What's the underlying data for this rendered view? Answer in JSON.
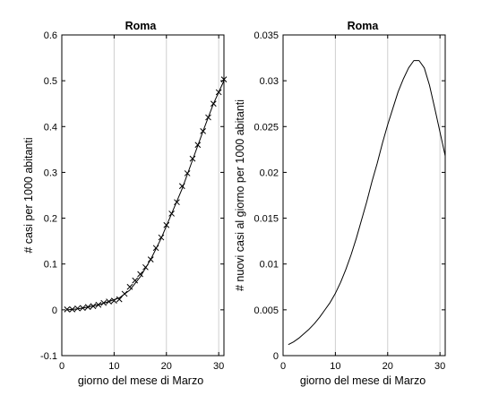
{
  "chart_data": [
    {
      "type": "scatter",
      "title": "Roma",
      "xlabel": "giorno del mese di Marzo",
      "ylabel": "# casi per 1000 abitanti",
      "xlim": [
        0,
        31
      ],
      "ylim": [
        -0.1,
        0.6
      ],
      "xticks": [
        0,
        10,
        20,
        30
      ],
      "yticks": [
        -0.1,
        0,
        0.1,
        0.2,
        0.3,
        0.4,
        0.5,
        0.6
      ],
      "grid": "vertical",
      "series": [
        {
          "kind": "markers",
          "marker": "x",
          "x": [
            1,
            2,
            3,
            4,
            5,
            6,
            7,
            8,
            9,
            10,
            11,
            12,
            13,
            14,
            15,
            16,
            17,
            18,
            19,
            20,
            21,
            22,
            23,
            24,
            25,
            26,
            27,
            28,
            29,
            30,
            31
          ],
          "values": [
            0.001,
            0.001,
            0.003,
            0.004,
            0.006,
            0.008,
            0.011,
            0.015,
            0.018,
            0.02,
            0.023,
            0.035,
            0.05,
            0.064,
            0.078,
            0.093,
            0.11,
            0.135,
            0.158,
            0.185,
            0.21,
            0.235,
            0.27,
            0.298,
            0.33,
            0.36,
            0.39,
            0.42,
            0.45,
            0.475,
            0.503
          ]
        },
        {
          "kind": "line",
          "x": [
            1,
            3,
            5,
            7,
            9,
            11,
            13,
            15,
            17,
            19,
            21,
            23,
            25,
            27,
            29,
            31
          ],
          "values": [
            0.0,
            0.002,
            0.006,
            0.011,
            0.018,
            0.026,
            0.043,
            0.072,
            0.11,
            0.156,
            0.21,
            0.264,
            0.327,
            0.39,
            0.45,
            0.5
          ]
        }
      ]
    },
    {
      "type": "line",
      "title": "Roma",
      "xlabel": "giorno del mese di Marzo",
      "ylabel": "# nuovi casi al giorno per 1000 abitanti",
      "xlim": [
        0,
        31
      ],
      "ylim": [
        0,
        0.035
      ],
      "xticks": [
        0,
        10,
        20,
        30
      ],
      "yticks": [
        "0",
        "0.005",
        "0.01",
        "0.015",
        "0.02",
        "0.025",
        "0.03",
        "0.035"
      ],
      "grid": "vertical",
      "series": [
        {
          "kind": "line",
          "x": [
            1,
            2,
            3,
            4,
            5,
            6,
            7,
            8,
            9,
            10,
            11,
            12,
            13,
            14,
            15,
            16,
            17,
            18,
            19,
            20,
            21,
            22,
            23,
            24,
            25,
            26,
            27,
            28,
            29,
            30,
            31
          ],
          "values": [
            0.0012,
            0.0015,
            0.0019,
            0.0024,
            0.0029,
            0.0035,
            0.0042,
            0.005,
            0.0058,
            0.0068,
            0.008,
            0.0094,
            0.011,
            0.0128,
            0.0148,
            0.0168,
            0.019,
            0.021,
            0.0232,
            0.0252,
            0.027,
            0.0288,
            0.0302,
            0.0314,
            0.0322,
            0.0322,
            0.0314,
            0.0295,
            0.027,
            0.0244,
            0.0218
          ]
        }
      ]
    }
  ]
}
